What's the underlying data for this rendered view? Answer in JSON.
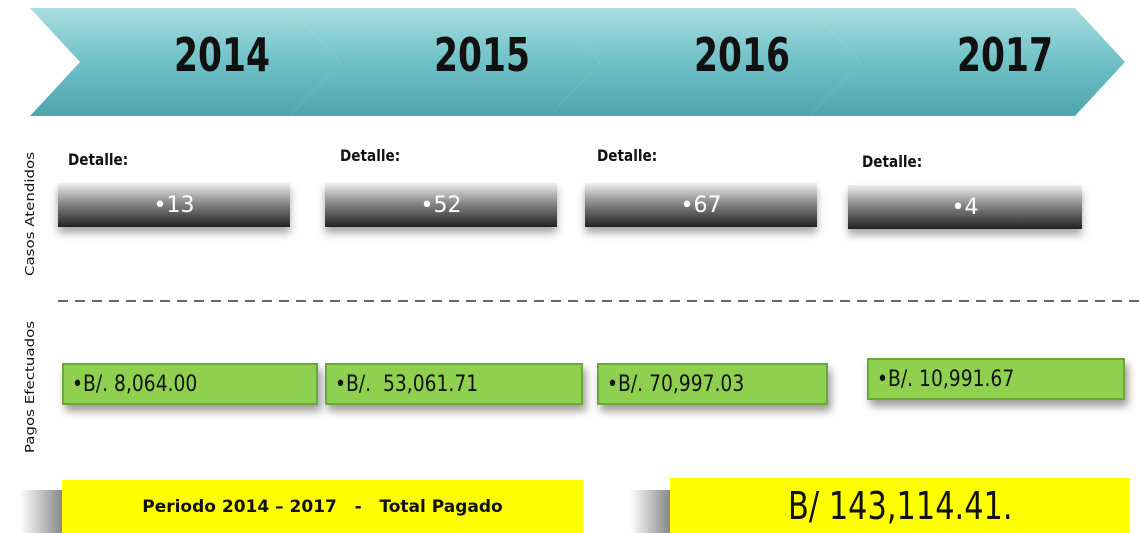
{
  "years": [
    "2014",
    "2015",
    "2016",
    "2017"
  ],
  "sections": {
    "cases": "Casos Atendidos",
    "payments": "Pagos Efectuados"
  },
  "detail_label": "Detalle:",
  "cases": [
    "13",
    "52",
    "67",
    "4"
  ],
  "payments": [
    "B/. 8,064.00",
    "B/.  53,061.71",
    "B/. 70,997.03",
    "B/. 10,991.67"
  ],
  "footer": {
    "label": "Periodo 2014 – 2017   -   Total Pagado",
    "total": "B/ 143,114.41."
  }
}
